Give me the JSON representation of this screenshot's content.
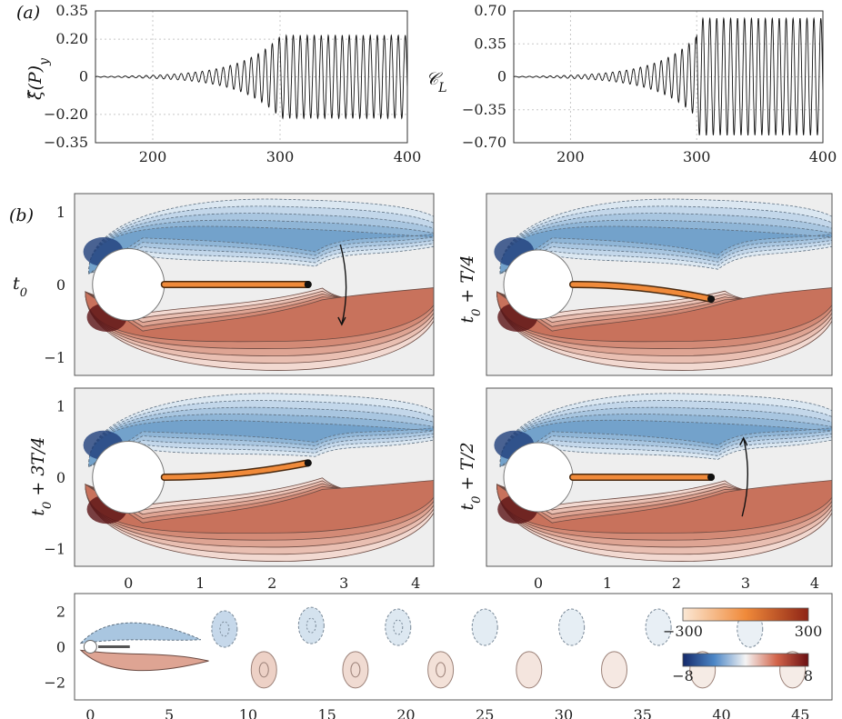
{
  "panel_labels": {
    "a": "(a)",
    "b": "(b)"
  },
  "chart_data": [
    {
      "type": "line",
      "ylabel": "ξ̂(P)y",
      "xlim": [
        155,
        400
      ],
      "ylim": [
        -0.35,
        0.35
      ],
      "xticks": [
        200,
        300,
        400
      ],
      "yticks": [
        0.35,
        0.2,
        0,
        -0.2,
        -0.35
      ],
      "ytick_labels": [
        "0.35",
        "0.20",
        "0",
        "−0.20",
        "−0.35"
      ],
      "xtick_labels": [
        "200",
        "300",
        "400"
      ],
      "grid": true,
      "signal": {
        "period": 5.5,
        "amp_initial": 0.002,
        "growth_rate": 0.052,
        "t_saturation": 310,
        "amp_saturated": 0.22
      }
    },
    {
      "type": "line",
      "ylabel": "𝒞L",
      "xlim": [
        155,
        400
      ],
      "ylim": [
        -0.7,
        0.7
      ],
      "xticks": [
        200,
        300,
        400
      ],
      "yticks": [
        0.7,
        0.35,
        0,
        -0.35,
        -0.7
      ],
      "ytick_labels": [
        "0.70",
        "0.35",
        "0",
        "−0.35",
        "−0.70"
      ],
      "xtick_labels": [
        "200",
        "300",
        "400"
      ],
      "grid": true,
      "signal": {
        "period": 5.5,
        "amp_initial": 0.004,
        "growth_rate": 0.052,
        "t_saturation": 300,
        "amp_saturated": 0.62
      }
    }
  ],
  "snapshots": [
    {
      "label": "t0",
      "label_parts": {
        "base": "t",
        "sub": "0",
        "rest": ""
      },
      "beam_tip_y": 0.0,
      "arrow": "down"
    },
    {
      "label": "t0 + T/4",
      "label_parts": {
        "base": "t",
        "sub": "0",
        "rest": " + T/4"
      },
      "beam_tip_y": -0.2,
      "arrow": "none"
    },
    {
      "label": "t0 + 3T/4",
      "label_parts": {
        "base": "t",
        "sub": "0",
        "rest": " + 3T/4"
      },
      "beam_tip_y": 0.2,
      "arrow": "none"
    },
    {
      "label": "t0 + T/2",
      "label_parts": {
        "base": "t",
        "sub": "0",
        "rest": " + T/2"
      },
      "beam_tip_y": 0.0,
      "arrow": "up"
    }
  ],
  "snapshot_axes": {
    "xticks": [
      "0",
      "1",
      "2",
      "3",
      "4"
    ],
    "yticks": [
      "1",
      "0",
      "−1"
    ],
    "xlim": [
      -0.75,
      4.25
    ],
    "ylim": [
      -1.25,
      1.25
    ]
  },
  "wake": {
    "xticks": [
      "0",
      "5",
      "10",
      "15",
      "20",
      "25",
      "30",
      "35",
      "40",
      "45"
    ],
    "yticks": [
      "2",
      "0",
      "−2"
    ],
    "xlim": [
      -1,
      47
    ],
    "ylim": [
      -3,
      3
    ],
    "colorbar_beam": {
      "min_label": "−300",
      "max_label": "300"
    },
    "colorbar_vorticity": {
      "min_label": "−8",
      "max_label": "8"
    }
  },
  "colors": {
    "negative": "#3b6fb3",
    "positive": "#b24a30",
    "beam": "#f08a3a",
    "background": "#eeeeee"
  }
}
